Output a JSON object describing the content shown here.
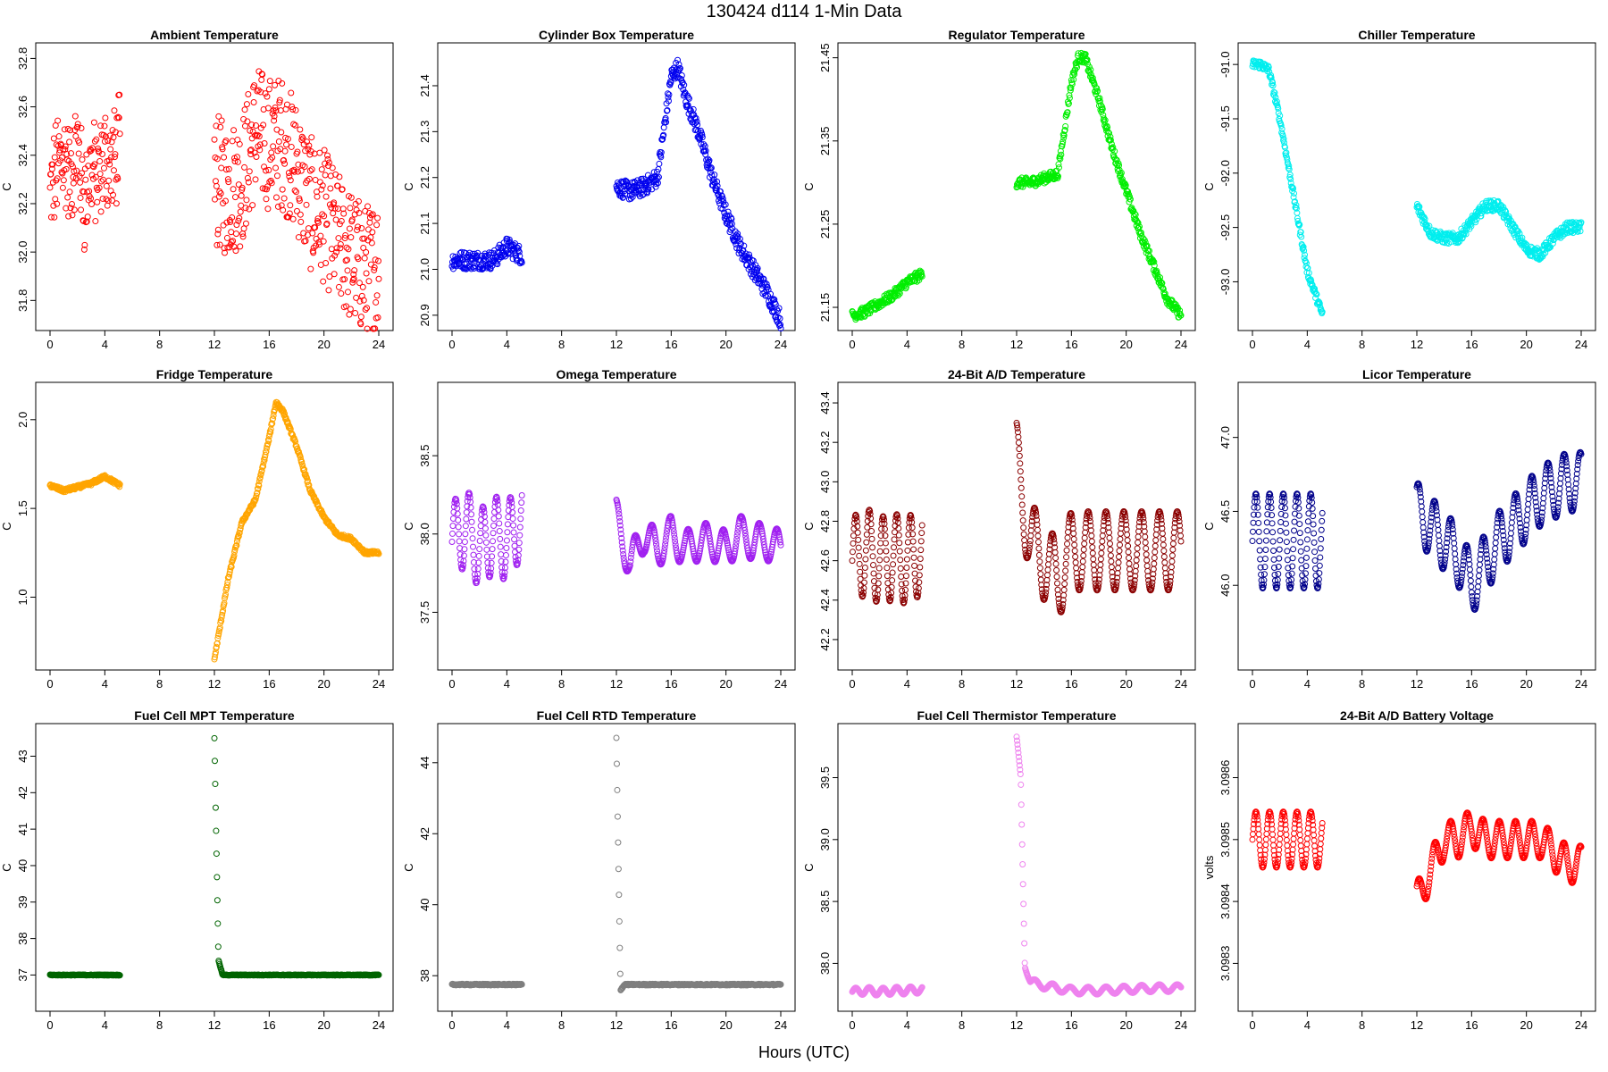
{
  "figure": {
    "title": "130424    d114    1-Min Data",
    "xlabel": "Hours (UTC)"
  },
  "chart_data": [
    {
      "type": "scatter",
      "title": "Ambient Temperature",
      "ylabel": "C",
      "color": "#ff0000",
      "xlim": [
        0,
        24
      ],
      "xticks": [
        0,
        4,
        8,
        12,
        16,
        20,
        24
      ],
      "ylim": [
        31.72,
        32.82
      ],
      "yticks": [
        31.8,
        32.0,
        32.2,
        32.4,
        32.6,
        32.8
      ],
      "ytick_labels": [
        "31.8",
        "32.0",
        "32.2",
        "32.4",
        "32.6",
        "32.8"
      ],
      "series": [
        {
          "x": [
            0,
            0.5,
            1,
            1.5,
            2,
            2.5,
            3,
            3.5,
            4,
            4.5,
            5.1
          ],
          "y": [
            32.22,
            32.35,
            32.4,
            32.3,
            32.45,
            32.2,
            32.35,
            32.3,
            32.4,
            32.35,
            32.45
          ],
          "spread": 0.2,
          "gap_noise": true
        },
        {
          "x": [
            12,
            13,
            14,
            15,
            16,
            17,
            18,
            19,
            20,
            21,
            22,
            23,
            24
          ],
          "y": [
            32.3,
            32.25,
            32.3,
            32.5,
            32.45,
            32.45,
            32.35,
            32.2,
            32.15,
            32.05,
            31.98,
            31.92,
            31.95
          ],
          "spread": 0.28
        }
      ]
    },
    {
      "type": "scatter",
      "title": "Cylinder Box Temperature",
      "ylabel": "C",
      "color": "#0000ee",
      "xlim": [
        0,
        24
      ],
      "xticks": [
        0,
        4,
        8,
        12,
        16,
        20,
        24
      ],
      "ylim": [
        20.89,
        21.47
      ],
      "yticks": [
        20.9,
        21.0,
        21.1,
        21.2,
        21.3,
        21.4
      ],
      "ytick_labels": [
        "20.9",
        "21.0",
        "21.1",
        "21.2",
        "21.3",
        "21.4"
      ],
      "series": [
        {
          "x": [
            0,
            1,
            2,
            3,
            4,
            5.1
          ],
          "y": [
            21.02,
            21.02,
            21.02,
            21.02,
            21.05,
            21.03
          ],
          "spread": 0.02
        },
        {
          "x": [
            12,
            13,
            14,
            15,
            16,
            16.5,
            17,
            18,
            19,
            20,
            21,
            22,
            23,
            24
          ],
          "y": [
            21.18,
            21.17,
            21.18,
            21.2,
            21.42,
            21.44,
            21.38,
            21.3,
            21.2,
            21.12,
            21.05,
            21.0,
            20.95,
            20.89
          ],
          "spread": 0.02
        }
      ]
    },
    {
      "type": "scatter",
      "title": "Regulator Temperature",
      "ylabel": "C",
      "color": "#00ee00",
      "xlim": [
        0,
        24
      ],
      "xticks": [
        0,
        4,
        8,
        12,
        16,
        20,
        24
      ],
      "ylim": [
        21.135,
        21.455
      ],
      "yticks": [
        21.15,
        21.25,
        21.35,
        21.45
      ],
      "ytick_labels": [
        "21.15",
        "21.25",
        "21.35",
        "21.45"
      ],
      "series": [
        {
          "x": [
            0,
            1,
            2,
            3,
            4,
            5.1
          ],
          "y": [
            21.14,
            21.145,
            21.155,
            21.165,
            21.18,
            21.19
          ],
          "spread": 0.006
        },
        {
          "x": [
            12,
            13,
            14,
            15,
            16,
            16.5,
            17,
            18,
            19,
            20,
            21,
            22,
            23,
            24
          ],
          "y": [
            21.3,
            21.3,
            21.305,
            21.31,
            21.42,
            21.45,
            21.45,
            21.4,
            21.34,
            21.29,
            21.24,
            21.2,
            21.16,
            21.14
          ],
          "spread": 0.006
        }
      ]
    },
    {
      "type": "scatter",
      "title": "Chiller Temperature",
      "ylabel": "C",
      "color": "#00eeee",
      "xlim": [
        0,
        24
      ],
      "xticks": [
        0,
        4,
        8,
        12,
        16,
        20,
        24
      ],
      "ylim": [
        -93.35,
        -90.9
      ],
      "yticks": [
        -93.0,
        -92.5,
        -92.0,
        -91.5,
        -91.0
      ],
      "ytick_labels": [
        "-93.0",
        "-92.5",
        "-92.0",
        "-91.5",
        "-91.0"
      ],
      "series": [
        {
          "x": [
            0,
            0.6,
            1.2,
            2,
            3,
            4,
            5.1
          ],
          "y": [
            -91.0,
            -91.0,
            -91.05,
            -91.5,
            -92.2,
            -92.9,
            -93.3
          ],
          "spread": 0.04
        },
        {
          "x": [
            12,
            13,
            14,
            15,
            16,
            17,
            18,
            19,
            20,
            21,
            22,
            23,
            24
          ],
          "y": [
            -92.3,
            -92.55,
            -92.6,
            -92.6,
            -92.45,
            -92.3,
            -92.3,
            -92.5,
            -92.7,
            -92.75,
            -92.6,
            -92.5,
            -92.5
          ],
          "spread": 0.05
        }
      ]
    },
    {
      "type": "scatter",
      "title": "Fridge Temperature",
      "ylabel": "C",
      "color": "#ffa500",
      "xlim": [
        0,
        24
      ],
      "xticks": [
        0,
        4,
        8,
        12,
        16,
        20,
        24
      ],
      "ylim": [
        0.65,
        2.15
      ],
      "yticks": [
        1.0,
        1.5,
        2.0
      ],
      "ytick_labels": [
        "1.0",
        "1.5",
        "2.0"
      ],
      "series": [
        {
          "x": [
            0,
            1,
            2,
            3,
            4,
            5.1
          ],
          "y": [
            1.63,
            1.6,
            1.62,
            1.64,
            1.68,
            1.63
          ],
          "spread": 0.01
        },
        {
          "x": [
            12,
            13,
            14,
            15,
            16,
            16.5,
            17,
            18,
            19,
            20,
            21,
            22,
            23,
            24
          ],
          "y": [
            0.65,
            1.1,
            1.42,
            1.55,
            1.9,
            2.1,
            2.05,
            1.85,
            1.6,
            1.45,
            1.35,
            1.33,
            1.25,
            1.25
          ],
          "spread": 0.01
        }
      ]
    },
    {
      "type": "scatter",
      "title": "Omega Temperature",
      "ylabel": "C",
      "color": "#a020f0",
      "xlim": [
        0,
        24
      ],
      "xticks": [
        0,
        4,
        8,
        12,
        16,
        20,
        24
      ],
      "ylim": [
        37.2,
        38.9
      ],
      "yticks": [
        37.5,
        38.0,
        38.5
      ],
      "ytick_labels": [
        "37.5",
        "38.0",
        "38.5"
      ],
      "series": [
        {
          "x": [
            0,
            1,
            2,
            3,
            4,
            5.1
          ],
          "y": [
            37.95,
            38.05,
            37.9,
            38.0,
            37.95,
            38.1
          ],
          "spread": 0.25,
          "osc": 1.3
        },
        {
          "x": [
            12,
            13,
            14,
            15,
            16,
            17,
            18,
            19,
            20,
            21,
            22,
            23,
            24
          ],
          "y": [
            38.1,
            37.8,
            38.0,
            37.9,
            38.0,
            37.9,
            37.95,
            37.95,
            37.9,
            38.0,
            37.95,
            37.95,
            37.9
          ],
          "spread": 0.12,
          "osc": 1.0
        }
      ]
    },
    {
      "type": "scatter",
      "title": "24-Bit A/D Temperature",
      "ylabel": "C",
      "color": "#8b0000",
      "xlim": [
        0,
        24
      ],
      "xticks": [
        0,
        4,
        8,
        12,
        16,
        20,
        24
      ],
      "ylim": [
        42.1,
        43.45
      ],
      "yticks": [
        42.2,
        42.4,
        42.6,
        42.8,
        43.0,
        43.2,
        43.4
      ],
      "ytick_labels": [
        "42.2",
        "42.4",
        "42.6",
        "42.8",
        "43.0",
        "43.2",
        "43.4"
      ],
      "series": [
        {
          "x": [
            0,
            1,
            2,
            3,
            4,
            5.1
          ],
          "y": [
            42.6,
            42.65,
            42.6,
            42.62,
            42.6,
            42.65
          ],
          "spread": 0.22,
          "osc": 1.3
        },
        {
          "x": [
            12,
            13,
            14,
            15,
            16,
            17,
            18,
            19,
            20,
            21,
            22,
            23,
            24
          ],
          "y": [
            43.1,
            42.7,
            42.6,
            42.5,
            42.65,
            42.65,
            42.65,
            42.65,
            42.65,
            42.65,
            42.65,
            42.65,
            42.65
          ],
          "spread": 0.2,
          "osc": 1.0
        }
      ]
    },
    {
      "type": "scatter",
      "title": "Licor Temperature",
      "ylabel": "C",
      "color": "#00008b",
      "xlim": [
        0,
        24
      ],
      "xticks": [
        0,
        4,
        8,
        12,
        16,
        20,
        24
      ],
      "ylim": [
        45.5,
        47.3
      ],
      "yticks": [
        46.0,
        46.5,
        47.0
      ],
      "ytick_labels": [
        "46.0",
        "46.5",
        "47.0"
      ],
      "series": [
        {
          "x": [
            0,
            1,
            2,
            3,
            4,
            5.1
          ],
          "y": [
            46.3,
            46.3,
            46.3,
            46.3,
            46.3,
            46.3
          ],
          "spread": 0.32,
          "osc": 1.3
        },
        {
          "x": [
            12,
            13,
            14,
            15,
            16,
            17,
            18,
            19,
            20,
            21,
            22,
            23,
            24
          ],
          "y": [
            46.5,
            46.4,
            46.3,
            46.2,
            46.0,
            46.15,
            46.3,
            46.4,
            46.5,
            46.6,
            46.65,
            46.7,
            46.7
          ],
          "spread": 0.2,
          "osc": 1.1
        }
      ]
    },
    {
      "type": "scatter",
      "title": "Fuel Cell MPT Temperature",
      "ylabel": "C",
      "color": "#006400",
      "xlim": [
        0,
        24
      ],
      "xticks": [
        0,
        4,
        8,
        12,
        16,
        20,
        24
      ],
      "ylim": [
        36.3,
        43.6
      ],
      "yticks": [
        37,
        38,
        39,
        40,
        41,
        42,
        43
      ],
      "ytick_labels": [
        "37",
        "38",
        "39",
        "40",
        "41",
        "42",
        "43"
      ],
      "series": [
        {
          "x": [
            0,
            5.1
          ],
          "y": [
            37.0,
            37.0
          ],
          "spread": 0.01
        },
        {
          "x": [
            12,
            12.3,
            12.6,
            13,
            24
          ],
          "y": [
            43.5,
            37.4,
            37.0,
            37.0,
            37.0
          ],
          "spread": 0.01
        }
      ]
    },
    {
      "type": "scatter",
      "title": "Fuel Cell RTD Temperature",
      "ylabel": "C",
      "color": "#7f7f7f",
      "xlim": [
        0,
        24
      ],
      "xticks": [
        0,
        4,
        8,
        12,
        16,
        20,
        24
      ],
      "ylim": [
        37.3,
        44.8
      ],
      "yticks": [
        38,
        40,
        42,
        44
      ],
      "ytick_labels": [
        "38",
        "40",
        "42",
        "44"
      ],
      "series": [
        {
          "x": [
            0,
            5.1
          ],
          "y": [
            37.75,
            37.75
          ],
          "spread": 0.02
        },
        {
          "x": [
            12,
            12.3,
            12.6,
            13,
            24
          ],
          "y": [
            44.7,
            37.6,
            37.75,
            37.75,
            37.75
          ],
          "spread": 0.02
        }
      ]
    },
    {
      "type": "scatter",
      "title": "Fuel Cell Thermistor Temperature",
      "ylabel": "C",
      "color": "#ee82ee",
      "xlim": [
        0,
        24
      ],
      "xticks": [
        0,
        4,
        8,
        12,
        16,
        20,
        24
      ],
      "ylim": [
        37.7,
        39.85
      ],
      "yticks": [
        38.0,
        38.5,
        39.0,
        39.5
      ],
      "ytick_labels": [
        "38.0",
        "38.5",
        "39.0",
        "39.5"
      ],
      "series": [
        {
          "x": [
            0,
            1,
            2,
            3,
            4,
            5.1
          ],
          "y": [
            37.77,
            37.78,
            37.77,
            37.78,
            37.78,
            37.79
          ],
          "spread": 0.03,
          "osc": 1.3
        },
        {
          "x": [
            12,
            12.3,
            12.6,
            13,
            14,
            16,
            18,
            20,
            22,
            24
          ],
          "y": [
            39.8,
            39.5,
            38.0,
            37.85,
            37.82,
            37.78,
            37.78,
            37.79,
            37.8,
            37.8
          ],
          "spread": 0.03,
          "osc": 1.0
        }
      ]
    },
    {
      "type": "scatter",
      "title": "24-Bit A/D Battery Voltage",
      "ylabel": "volts",
      "color": "#ff0000",
      "xlim": [
        0,
        24
      ],
      "xticks": [
        0,
        4,
        8,
        12,
        16,
        20,
        24
      ],
      "ylim": [
        3.09824,
        3.09867
      ],
      "yticks": [
        3.0983,
        3.0984,
        3.0985,
        3.0986
      ],
      "ytick_labels": [
        "3.0983",
        "3.0984",
        "3.0985",
        "3.0986"
      ],
      "series": [
        {
          "x": [
            0,
            1,
            2,
            3,
            4,
            5.1
          ],
          "y": [
            3.0985,
            3.0985,
            3.0985,
            3.0985,
            3.0985,
            3.0985
          ],
          "spread": 4.5e-05,
          "osc": 1.3
        },
        {
          "x": [
            12,
            13,
            14,
            15,
            16,
            17,
            18,
            19,
            20,
            21,
            22,
            23,
            24
          ],
          "y": [
            3.0984,
            3.09845,
            3.0985,
            3.0985,
            3.09852,
            3.0985,
            3.0985,
            3.0985,
            3.0985,
            3.0985,
            3.09848,
            3.09846,
            3.09846
          ],
          "spread": 3e-05,
          "osc": 1.1
        }
      ]
    }
  ]
}
